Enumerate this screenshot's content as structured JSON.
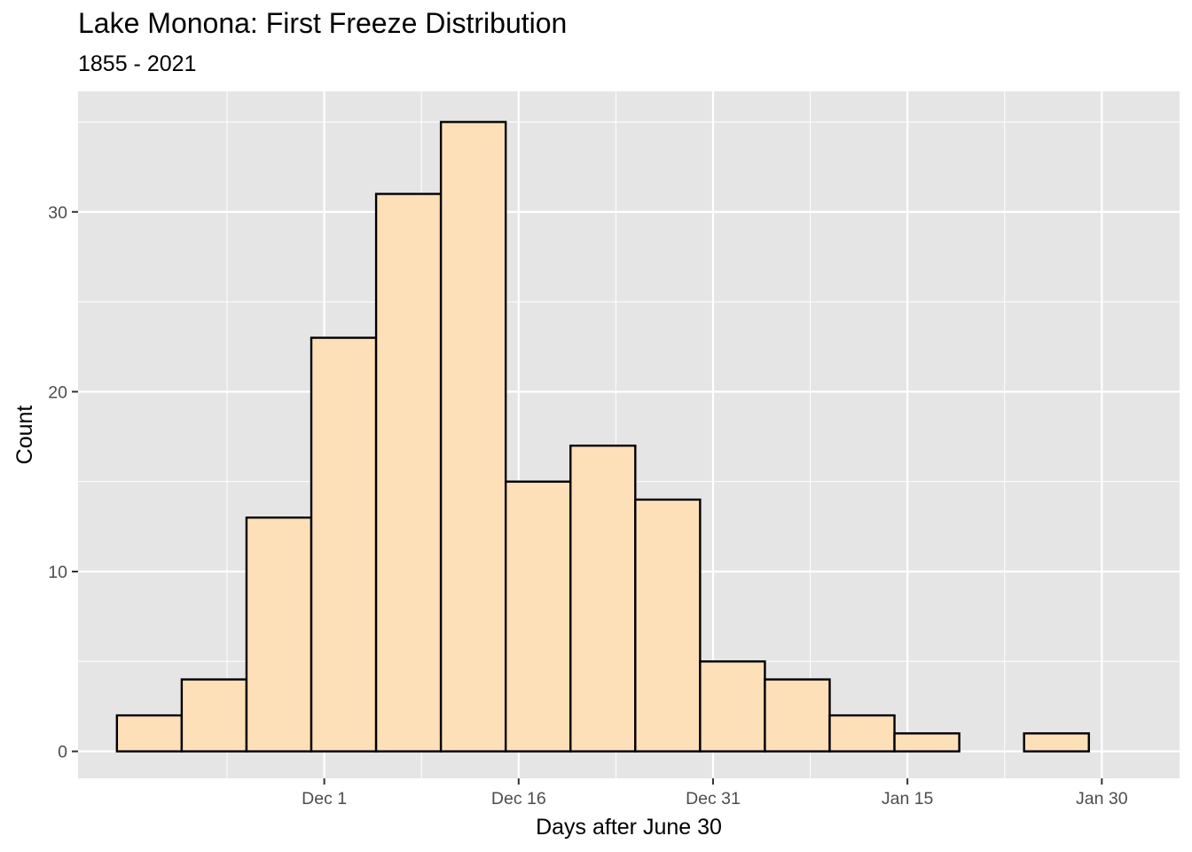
{
  "chart_data": {
    "type": "bar",
    "title": "Lake Monona: First Freeze Distribution",
    "subtitle": "1855 - 2021",
    "xlabel": "Days after June 30",
    "ylabel": "Count",
    "x_ticks": [
      {
        "label": "Dec 1",
        "date": "Dec 1"
      },
      {
        "label": "Dec 16",
        "date": "Dec 16"
      },
      {
        "label": "Dec 31",
        "date": "Dec 31"
      },
      {
        "label": "Jan 15",
        "date": "Jan 15"
      },
      {
        "label": "Jan 30",
        "date": "Jan 30"
      }
    ],
    "y_ticks": [
      0,
      10,
      20,
      30
    ],
    "ylim": [
      -1.5,
      36.7
    ],
    "xlim": [
      "Nov 12",
      "Feb 5"
    ],
    "bins": [
      {
        "start": "Nov 15",
        "end": "Nov 20",
        "count": 2
      },
      {
        "start": "Nov 20",
        "end": "Nov 25",
        "count": 4
      },
      {
        "start": "Nov 25",
        "end": "Nov 30",
        "count": 13
      },
      {
        "start": "Nov 30",
        "end": "Dec 5",
        "count": 23
      },
      {
        "start": "Dec 5",
        "end": "Dec 10",
        "count": 31
      },
      {
        "start": "Dec 10",
        "end": "Dec 15",
        "count": 35
      },
      {
        "start": "Dec 15",
        "end": "Dec 20",
        "count": 15
      },
      {
        "start": "Dec 20",
        "end": "Dec 25",
        "count": 17
      },
      {
        "start": "Dec 25",
        "end": "Dec 30",
        "count": 14
      },
      {
        "start": "Dec 30",
        "end": "Jan 4",
        "count": 5
      },
      {
        "start": "Jan 4",
        "end": "Jan 9",
        "count": 4
      },
      {
        "start": "Jan 9",
        "end": "Jan 14",
        "count": 2
      },
      {
        "start": "Jan 14",
        "end": "Jan 19",
        "count": 1
      },
      {
        "start": "Jan 19",
        "end": "Jan 24",
        "count": 0
      },
      {
        "start": "Jan 24",
        "end": "Jan 29",
        "count": 1
      }
    ],
    "grid": true,
    "legend": "none",
    "colors": {
      "panel_background": "#e5e5e5",
      "grid": "#ffffff",
      "bar_fill": "#fddfb8",
      "bar_stroke": "#000000",
      "tick_text": "#4d4d4d",
      "axis_text": "#000000"
    }
  }
}
